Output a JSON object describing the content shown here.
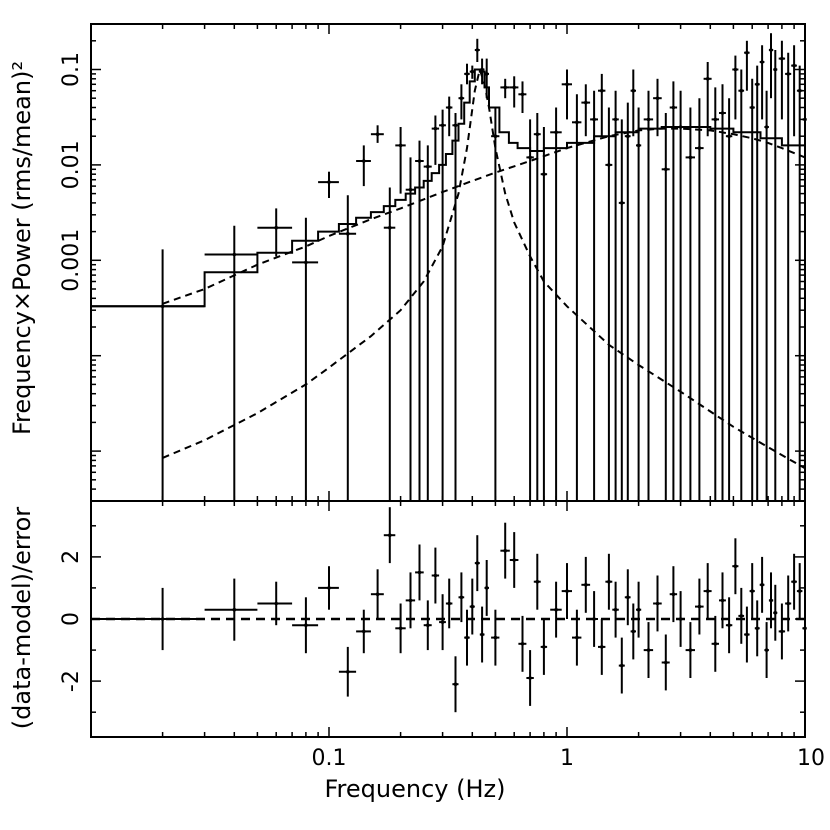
{
  "chart_data": [
    {
      "type": "scatter",
      "name": "power-spectrum",
      "xlabel": "",
      "ylabel": "Frequency×Power (rms/mean)²",
      "xscale": "log",
      "yscale": "log",
      "xlim": [
        0.01,
        10
      ],
      "ylim": [
        3e-06,
        0.3
      ],
      "ytick_values": [
        0.001,
        0.01,
        0.1
      ],
      "ytick_labels": [
        "0.001",
        "0.01",
        "0.1"
      ],
      "data": {
        "x": [
          0.02,
          0.04,
          0.06,
          0.08,
          0.1,
          0.12,
          0.14,
          0.16,
          0.18,
          0.2,
          0.22,
          0.24,
          0.26,
          0.28,
          0.3,
          0.32,
          0.34,
          0.36,
          0.38,
          0.4,
          0.42,
          0.44,
          0.46,
          0.5,
          0.55,
          0.6,
          0.65,
          0.7,
          0.75,
          0.8,
          0.9,
          1.0,
          1.1,
          1.2,
          1.3,
          1.4,
          1.5,
          1.6,
          1.7,
          1.8,
          1.9,
          2.0,
          2.2,
          2.4,
          2.6,
          2.8,
          3.0,
          3.3,
          3.6,
          3.9,
          4.2,
          4.5,
          4.8,
          5.1,
          5.4,
          5.7,
          6.0,
          6.3,
          6.6,
          6.9,
          7.2,
          7.5,
          8.0,
          8.5,
          9.0,
          9.5,
          10.0
        ],
        "xerr": [
          0.01,
          0.01,
          0.01,
          0.01,
          0.01,
          0.01,
          0.01,
          0.01,
          0.01,
          0.01,
          0.01,
          0.01,
          0.01,
          0.01,
          0.01,
          0.01,
          0.01,
          0.01,
          0.01,
          0.01,
          0.01,
          0.01,
          0.01,
          0.02,
          0.025,
          0.025,
          0.025,
          0.025,
          0.025,
          0.025,
          0.05,
          0.05,
          0.05,
          0.05,
          0.05,
          0.05,
          0.05,
          0.05,
          0.05,
          0.05,
          0.05,
          0.05,
          0.1,
          0.1,
          0.1,
          0.1,
          0.1,
          0.15,
          0.15,
          0.15,
          0.15,
          0.15,
          0.15,
          0.15,
          0.15,
          0.15,
          0.15,
          0.15,
          0.15,
          0.15,
          0.15,
          0.15,
          0.25,
          0.25,
          0.25,
          0.25,
          0.25
        ],
        "y": [
          0.00033,
          0.00115,
          0.0022,
          0.00095,
          0.0066,
          0.0019,
          0.011,
          0.021,
          0.0022,
          0.016,
          0.0055,
          0.011,
          0.0096,
          0.024,
          0.026,
          0.04,
          0.026,
          0.05,
          0.09,
          0.095,
          0.16,
          0.1,
          0.09,
          0.02,
          0.065,
          0.065,
          0.055,
          0.012,
          0.021,
          0.008,
          0.022,
          0.07,
          0.028,
          0.045,
          0.03,
          0.06,
          0.01,
          0.03,
          0.004,
          0.02,
          0.06,
          0.016,
          0.03,
          0.05,
          0.009,
          0.04,
          0.025,
          0.012,
          0.015,
          0.08,
          0.03,
          0.035,
          0.02,
          0.1,
          0.06,
          0.15,
          0.04,
          0.07,
          0.12,
          0.025,
          0.16,
          0.1,
          0.13,
          0.09,
          0.11,
          0.06,
          0.03
        ],
        "ylo": [
          3e-06,
          3e-06,
          0.0011,
          3e-06,
          0.0045,
          3e-06,
          0.006,
          0.017,
          3e-06,
          0.005,
          3e-06,
          3e-06,
          3e-06,
          0.01,
          3e-06,
          0.02,
          3e-06,
          0.03,
          0.07,
          0.08,
          0.12,
          0.07,
          0.05,
          3e-06,
          0.05,
          0.04,
          0.035,
          3e-06,
          3e-06,
          3e-06,
          3e-06,
          0.03,
          3e-06,
          0.02,
          3e-06,
          0.02,
          3e-06,
          3e-06,
          3e-06,
          3e-06,
          0.02,
          3e-06,
          3e-06,
          0.02,
          3e-06,
          3e-06,
          3e-06,
          3e-06,
          3e-06,
          0.02,
          3e-06,
          3e-06,
          3e-06,
          0.03,
          3e-06,
          0.06,
          3e-06,
          3e-06,
          0.03,
          3e-06,
          0.05,
          3e-06,
          0.03,
          3e-06,
          0.02,
          3e-06,
          3e-06
        ],
        "yhi": [
          0.0013,
          0.0023,
          0.0035,
          0.0028,
          0.0085,
          0.0048,
          0.016,
          0.026,
          0.0058,
          0.025,
          0.012,
          0.018,
          0.016,
          0.033,
          0.038,
          0.052,
          0.035,
          0.07,
          0.115,
          0.11,
          0.21,
          0.13,
          0.13,
          0.04,
          0.08,
          0.085,
          0.075,
          0.03,
          0.035,
          0.025,
          0.04,
          0.1,
          0.055,
          0.07,
          0.06,
          0.09,
          0.04,
          0.06,
          0.03,
          0.045,
          0.1,
          0.04,
          0.06,
          0.08,
          0.035,
          0.075,
          0.06,
          0.04,
          0.05,
          0.12,
          0.065,
          0.07,
          0.05,
          0.14,
          0.1,
          0.2,
          0.08,
          0.11,
          0.18,
          0.06,
          0.24,
          0.16,
          0.2,
          0.15,
          0.18,
          0.11,
          0.07
        ]
      },
      "model_components": [
        {
          "name": "total-model",
          "style": "solid-step",
          "x": [
            0.01,
            0.03,
            0.05,
            0.07,
            0.09,
            0.11,
            0.13,
            0.15,
            0.17,
            0.19,
            0.21,
            0.23,
            0.25,
            0.27,
            0.29,
            0.31,
            0.33,
            0.35,
            0.37,
            0.39,
            0.41,
            0.43,
            0.45,
            0.47,
            0.52,
            0.57,
            0.62,
            0.7,
            0.8,
            1.0,
            1.3,
            1.6,
            2.0,
            2.5,
            3.0,
            4.0,
            5.0,
            6.5,
            8.0,
            10.0
          ],
          "y": [
            0.00033,
            0.00075,
            0.0012,
            0.0016,
            0.002,
            0.0024,
            0.0028,
            0.0032,
            0.0037,
            0.0043,
            0.005,
            0.0058,
            0.0068,
            0.0082,
            0.01,
            0.013,
            0.018,
            0.027,
            0.045,
            0.075,
            0.1,
            0.095,
            0.065,
            0.04,
            0.022,
            0.017,
            0.015,
            0.014,
            0.015,
            0.017,
            0.02,
            0.022,
            0.024,
            0.025,
            0.025,
            0.024,
            0.022,
            0.019,
            0.016,
            0.012
          ]
        },
        {
          "name": "broad-lorentzian",
          "style": "dashed",
          "x": [
            0.02,
            0.03,
            0.05,
            0.08,
            0.1,
            0.15,
            0.2,
            0.3,
            0.4,
            0.5,
            0.7,
            1.0,
            1.5,
            2.0,
            2.5,
            3.0,
            4.0,
            5.0,
            6.0,
            7.0,
            8.0,
            10.0
          ],
          "y": [
            0.00035,
            0.0005,
            0.0009,
            0.0014,
            0.0018,
            0.0027,
            0.0035,
            0.0052,
            0.0068,
            0.0083,
            0.011,
            0.015,
            0.02,
            0.023,
            0.024,
            0.024,
            0.023,
            0.021,
            0.019,
            0.017,
            0.015,
            0.012
          ]
        },
        {
          "name": "qpo-lorentzian",
          "style": "dashed",
          "x": [
            0.02,
            0.03,
            0.05,
            0.08,
            0.1,
            0.15,
            0.2,
            0.25,
            0.3,
            0.35,
            0.38,
            0.41,
            0.43,
            0.45,
            0.47,
            0.5,
            0.55,
            0.6,
            0.7,
            0.8,
            1.0,
            1.5,
            2.0,
            3.0,
            5.0,
            7.0,
            10.0
          ],
          "y": [
            8.5e-06,
            1.3e-05,
            2.5e-05,
            5e-05,
            7.5e-05,
            0.00016,
            0.0003,
            0.0006,
            0.0014,
            0.005,
            0.015,
            0.06,
            0.1,
            0.07,
            0.04,
            0.015,
            0.005,
            0.0025,
            0.0011,
            0.0006,
            0.00033,
            0.00013,
            8e-05,
            4.2e-05,
            1.8e-05,
            1.1e-05,
            6.6e-06
          ]
        }
      ]
    },
    {
      "type": "scatter",
      "name": "residuals",
      "xlabel": "Frequency (Hz)",
      "ylabel": "(data-model)/error",
      "xscale": "log",
      "xlim": [
        0.01,
        10
      ],
      "ylim": [
        -3.8,
        3.8
      ],
      "xtick_values": [
        0.1,
        1,
        10
      ],
      "xtick_labels": [
        "0.1",
        "1",
        "10"
      ],
      "ytick_values": [
        2,
        0,
        -2
      ],
      "ytick_labels": [
        "2",
        "0",
        "-2"
      ],
      "zero_line": {
        "y": 0,
        "style": "dashed"
      },
      "data": {
        "x": [
          0.02,
          0.04,
          0.06,
          0.08,
          0.1,
          0.12,
          0.14,
          0.16,
          0.18,
          0.2,
          0.22,
          0.24,
          0.26,
          0.28,
          0.3,
          0.32,
          0.34,
          0.36,
          0.38,
          0.4,
          0.42,
          0.44,
          0.46,
          0.5,
          0.55,
          0.6,
          0.65,
          0.7,
          0.75,
          0.8,
          0.9,
          1.0,
          1.1,
          1.2,
          1.3,
          1.4,
          1.5,
          1.6,
          1.7,
          1.8,
          1.9,
          2.0,
          2.2,
          2.4,
          2.6,
          2.8,
          3.0,
          3.3,
          3.6,
          3.9,
          4.2,
          4.5,
          4.8,
          5.1,
          5.4,
          5.7,
          6.0,
          6.3,
          6.6,
          6.9,
          7.2,
          7.5,
          8.0,
          8.5,
          9.0,
          9.5,
          10.0
        ],
        "xerr": [
          0.01,
          0.01,
          0.01,
          0.01,
          0.01,
          0.01,
          0.01,
          0.01,
          0.01,
          0.01,
          0.01,
          0.01,
          0.01,
          0.01,
          0.01,
          0.01,
          0.01,
          0.01,
          0.01,
          0.01,
          0.01,
          0.01,
          0.01,
          0.02,
          0.025,
          0.025,
          0.025,
          0.025,
          0.025,
          0.025,
          0.05,
          0.05,
          0.05,
          0.05,
          0.05,
          0.05,
          0.05,
          0.05,
          0.05,
          0.05,
          0.05,
          0.05,
          0.1,
          0.1,
          0.1,
          0.1,
          0.1,
          0.15,
          0.15,
          0.15,
          0.15,
          0.15,
          0.15,
          0.15,
          0.15,
          0.15,
          0.15,
          0.15,
          0.15,
          0.15,
          0.15,
          0.15,
          0.25,
          0.25,
          0.25,
          0.25,
          0.25
        ],
        "y": [
          0.0,
          0.3,
          0.5,
          -0.2,
          1.0,
          -1.7,
          -0.4,
          0.8,
          2.7,
          -0.3,
          0.6,
          1.5,
          -0.2,
          1.4,
          -0.1,
          0.5,
          -2.1,
          0.7,
          -0.6,
          0.4,
          1.8,
          -0.5,
          1.0,
          -0.6,
          2.2,
          1.9,
          -0.8,
          -1.9,
          1.2,
          -0.9,
          0.3,
          0.9,
          -0.6,
          1.1,
          0.0,
          -0.9,
          1.2,
          0.3,
          -1.5,
          0.7,
          -0.4,
          0.3,
          -1.0,
          0.5,
          -1.4,
          0.8,
          0.0,
          -1.0,
          0.4,
          0.9,
          -0.8,
          0.6,
          -0.2,
          1.7,
          0.1,
          -0.5,
          0.9,
          -0.3,
          1.1,
          -1.0,
          0.6,
          0.2,
          -0.4,
          0.5,
          1.2,
          0.9,
          -0.3
        ],
        "yerr": [
          1.0,
          1.0,
          0.7,
          0.9,
          0.7,
          0.8,
          0.7,
          0.8,
          0.9,
          0.8,
          0.9,
          0.9,
          0.8,
          0.9,
          0.9,
          0.8,
          0.9,
          0.8,
          0.9,
          0.9,
          0.9,
          0.9,
          0.9,
          0.9,
          0.9,
          0.9,
          0.9,
          0.9,
          0.9,
          0.9,
          0.9,
          0.9,
          0.9,
          0.9,
          0.9,
          0.9,
          0.9,
          0.9,
          0.9,
          0.9,
          0.9,
          0.9,
          0.9,
          0.9,
          0.9,
          0.9,
          0.9,
          0.9,
          0.9,
          0.9,
          0.9,
          0.9,
          0.9,
          0.9,
          0.9,
          0.9,
          0.9,
          0.9,
          0.9,
          0.9,
          0.9,
          0.9,
          0.9,
          0.9,
          0.9,
          0.9,
          0.9
        ]
      }
    }
  ]
}
